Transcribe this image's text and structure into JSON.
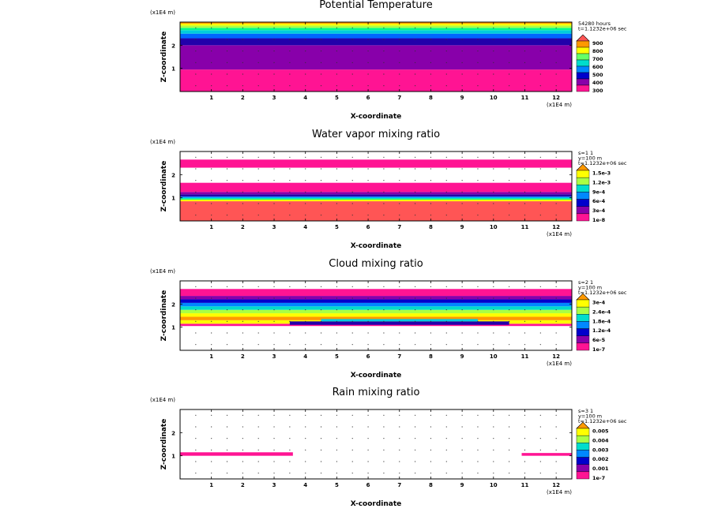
{
  "chart_data": [
    {
      "type": "heatmap",
      "title": "Potential Temperature",
      "xlabel": "X-coordinate",
      "ylabel": "Z-coordinate",
      "x_unit": "(x1E4 m)",
      "z_unit": "(x1E4 m)",
      "xlim": [
        0,
        12.5
      ],
      "ylim": [
        0,
        3
      ],
      "xticks": [
        "1",
        "2",
        "3",
        "4",
        "5",
        "6",
        "7",
        "8",
        "9",
        "10",
        "11",
        "12"
      ],
      "yticks": [
        "1",
        "2"
      ],
      "info": [
        "54280 hours",
        "t=1.1232e+06 sec"
      ],
      "colorbar": {
        "labels": [
          "300",
          "400",
          "500",
          "600",
          "700",
          "800",
          "900"
        ],
        "colors": [
          "#ff1493",
          "#8800aa",
          "#0000cc",
          "#0088ff",
          "#00ddcc",
          "#66ff66",
          "#ffff00",
          "#ff9900",
          "#ff5555"
        ]
      },
      "bands": [
        {
          "z_from": 0,
          "z_to": 0.95,
          "color": "#ff1493"
        },
        {
          "z_from": 0.95,
          "z_to": 2.0,
          "color": "#8800aa"
        },
        {
          "z_from": 2.0,
          "z_to": 2.3,
          "color": "#2200aa"
        },
        {
          "z_from": 2.3,
          "z_to": 2.5,
          "color": "#0066ff"
        },
        {
          "z_from": 2.5,
          "z_to": 2.65,
          "color": "#00ccdd"
        },
        {
          "z_from": 2.65,
          "z_to": 2.75,
          "color": "#00ff88"
        },
        {
          "z_from": 2.75,
          "z_to": 2.85,
          "color": "#aaff44"
        },
        {
          "z_from": 2.85,
          "z_to": 2.93,
          "color": "#ffff00"
        },
        {
          "z_from": 2.93,
          "z_to": 3.0,
          "color": "#ff9900"
        }
      ]
    },
    {
      "type": "heatmap",
      "title": "Water vapor mixing ratio",
      "xlabel": "X-coordinate",
      "ylabel": "Z-coordinate",
      "x_unit": "(x1E4 m)",
      "z_unit": "(x1E4 m)",
      "xlim": [
        0,
        12.5
      ],
      "ylim": [
        0,
        3
      ],
      "xticks": [
        "1",
        "2",
        "3",
        "4",
        "5",
        "6",
        "7",
        "8",
        "9",
        "10",
        "11",
        "12"
      ],
      "yticks": [
        "1",
        "2"
      ],
      "info": [
        "s=1 1",
        "y=100 m",
        "t=1.1232e+06 sec"
      ],
      "colorbar": {
        "labels": [
          "1e-8",
          "3e-4",
          "6e-4",
          "9e-4",
          "1.2e-3",
          "1.5e-3"
        ],
        "colors": [
          "#ff1493",
          "#8800aa",
          "#0000cc",
          "#0088ff",
          "#00ddcc",
          "#aaff44",
          "#ffff00",
          "#ff9900"
        ]
      },
      "bands": [
        {
          "z_from": 0,
          "z_to": 0.85,
          "color": "#ff5555"
        },
        {
          "z_from": 0.85,
          "z_to": 0.92,
          "color": "#ffff00"
        },
        {
          "z_from": 0.92,
          "z_to": 0.98,
          "color": "#00ff88"
        },
        {
          "z_from": 0.98,
          "z_to": 1.05,
          "color": "#00aaff"
        },
        {
          "z_from": 1.05,
          "z_to": 1.15,
          "color": "#2200aa"
        },
        {
          "z_from": 1.15,
          "z_to": 1.25,
          "color": "#8800aa"
        },
        {
          "z_from": 1.25,
          "z_to": 1.65,
          "color": "#ff1493"
        },
        {
          "z_from": 1.65,
          "z_to": 2.3,
          "color": "#ffffff"
        },
        {
          "z_from": 2.3,
          "z_to": 2.65,
          "color": "#ff1493"
        }
      ]
    },
    {
      "type": "heatmap",
      "title": "Cloud mixing ratio",
      "xlabel": "X-coordinate",
      "ylabel": "Z-coordinate",
      "x_unit": "(x1E4 m)",
      "z_unit": "(x1E4 m)",
      "xlim": [
        0,
        12.5
      ],
      "ylim": [
        0,
        3
      ],
      "xticks": [
        "1",
        "2",
        "3",
        "4",
        "5",
        "6",
        "7",
        "8",
        "9",
        "10",
        "11",
        "12"
      ],
      "yticks": [
        "1",
        "2"
      ],
      "info": [
        "s=2 1",
        "y=100 m",
        "t=1.1232e+06 sec"
      ],
      "colorbar": {
        "labels": [
          "1e-7",
          "6e-5",
          "1.2e-4",
          "1.8e-4",
          "2.4e-4",
          "3e-4"
        ],
        "colors": [
          "#ff1493",
          "#8800aa",
          "#0000cc",
          "#0088ff",
          "#00ddcc",
          "#aaff44",
          "#ffff00",
          "#ff9900"
        ]
      },
      "bands": [
        {
          "z_from": 1.05,
          "z_to": 1.15,
          "color": "#ff1493"
        },
        {
          "z_from": 1.15,
          "z_to": 1.3,
          "color": "#ffff00"
        },
        {
          "z_from": 1.3,
          "z_to": 1.45,
          "color": "#ff9900"
        },
        {
          "z_from": 1.45,
          "z_to": 1.6,
          "color": "#ffff00"
        },
        {
          "z_from": 1.6,
          "z_to": 1.75,
          "color": "#aaff44"
        },
        {
          "z_from": 1.75,
          "z_to": 1.9,
          "color": "#00ddcc"
        },
        {
          "z_from": 1.9,
          "z_to": 2.05,
          "color": "#0088ff"
        },
        {
          "z_from": 2.05,
          "z_to": 2.2,
          "color": "#0000cc"
        },
        {
          "z_from": 2.2,
          "z_to": 2.35,
          "color": "#8800aa"
        },
        {
          "z_from": 2.35,
          "z_to": 2.65,
          "color": "#ff1493"
        }
      ],
      "patches": [
        {
          "x_from": 3.5,
          "x_to": 10.5,
          "z_from": 1.1,
          "z_to": 1.25,
          "color": "#2200aa"
        },
        {
          "x_from": 4.5,
          "x_to": 9.5,
          "z_from": 1.25,
          "z_to": 1.35,
          "color": "#00ccdd"
        }
      ]
    },
    {
      "type": "heatmap",
      "title": "Rain mixing ratio",
      "xlabel": "X-coordinate",
      "ylabel": "Z-coordinate",
      "x_unit": "(x1E4 m)",
      "z_unit": "(x1E4 m)",
      "xlim": [
        0,
        12.5
      ],
      "ylim": [
        0,
        3
      ],
      "xticks": [
        "1",
        "2",
        "3",
        "4",
        "5",
        "6",
        "7",
        "8",
        "9",
        "10",
        "11",
        "12"
      ],
      "yticks": [
        "1",
        "2"
      ],
      "info": [
        "s=3 1",
        "y=100 m",
        "t=1.1232e+06 sec"
      ],
      "colorbar": {
        "labels": [
          "1e-7",
          "0.001",
          "0.002",
          "0.003",
          "0.004",
          "0.005"
        ],
        "colors": [
          "#ff1493",
          "#8800aa",
          "#0000cc",
          "#0088ff",
          "#00ddcc",
          "#aaff44",
          "#ffff00",
          "#ff9900"
        ]
      },
      "bands": [],
      "patches": [
        {
          "x_from": 0.0,
          "x_to": 3.6,
          "z_from": 1.0,
          "z_to": 1.15,
          "color": "#ff1493"
        },
        {
          "x_from": 10.9,
          "x_to": 12.5,
          "z_from": 1.0,
          "z_to": 1.12,
          "color": "#ff1493"
        }
      ]
    }
  ]
}
